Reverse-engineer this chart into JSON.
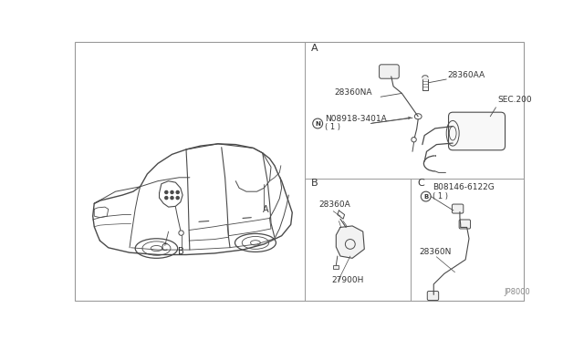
{
  "bg_color": "#ffffff",
  "line_color": "#4a4a4a",
  "text_color": "#333333",
  "border_color": "#999999",
  "fig_width": 6.4,
  "fig_height": 3.72,
  "dpi": 100,
  "part_number_bottom_right": "JP8000",
  "labels": {
    "section_A": "A",
    "section_B": "B",
    "section_C": "C",
    "part_28360AA": "28360AA",
    "part_28360NA": "28360NA",
    "part_N08918": "N08918-3401A",
    "part_N08918_sub": "( 1 )",
    "part_SEC200": "SEC.200",
    "part_28360A": "28360A",
    "part_27900H": "27900H",
    "part_B08146": "B08146-6122G",
    "part_B08146_sub": "( 1 )",
    "part_28360N": "28360N"
  }
}
